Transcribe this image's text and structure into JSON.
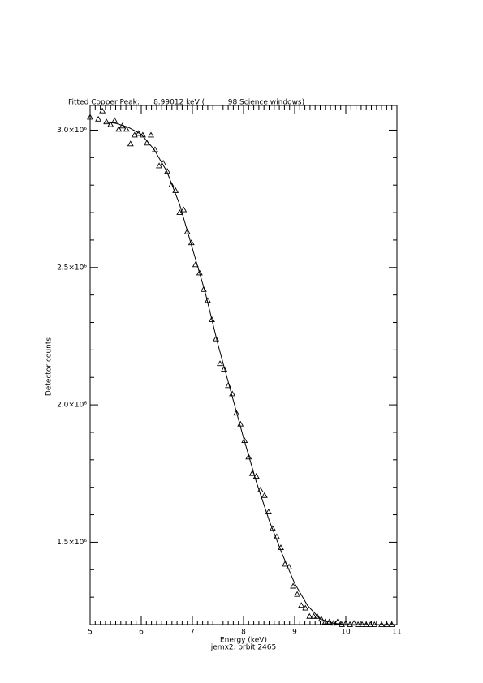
{
  "chart_data": {
    "type": "scatter",
    "title": "Fitted Copper Peak:      8.99012 keV (          98 Science windows)",
    "xlabel": "Energy (keV)",
    "subtitle": "jemx2: orbit 2465",
    "ylabel": "Detector counts",
    "xlim": [
      5,
      11
    ],
    "ylim": [
      1200000,
      3090000
    ],
    "xticks": [
      5,
      6,
      7,
      8,
      9,
      10,
      11
    ],
    "yticks": [
      {
        "value": 1500000,
        "label": "1.5×10⁶"
      },
      {
        "value": 2000000,
        "label": "2.0×10⁶"
      },
      {
        "value": 2500000,
        "label": "2.5×10⁶"
      },
      {
        "value": 3000000,
        "label": "3.0×10⁶"
      }
    ],
    "series": [
      {
        "type": "scatter",
        "color": "#000000",
        "x": [
          5.0,
          5.16,
          5.24,
          5.32,
          5.4,
          5.48,
          5.56,
          5.63,
          5.71,
          5.79,
          5.87,
          5.95,
          6.03,
          6.11,
          6.19,
          6.27,
          6.35,
          6.43,
          6.51,
          6.59,
          6.67,
          6.75,
          6.83,
          6.9,
          6.98,
          7.06,
          7.14,
          7.22,
          7.3,
          7.38,
          7.46,
          7.54,
          7.62,
          7.7,
          7.78,
          7.86,
          7.94,
          8.02,
          8.1,
          8.17,
          8.25,
          8.33,
          8.41,
          8.49,
          8.57,
          8.65,
          8.73,
          8.81,
          8.89,
          8.97,
          9.05,
          9.13,
          9.21,
          9.29,
          9.37,
          9.44,
          9.52,
          9.6,
          9.68,
          9.76,
          9.84,
          9.92,
          10.0,
          10.08,
          10.16,
          10.24,
          10.32,
          10.4,
          10.48,
          10.56,
          10.7,
          10.8,
          10.9
        ],
        "values": [
          3047000,
          3040000,
          3070000,
          3030000,
          3020000,
          3035000,
          3003000,
          3015000,
          3003000,
          2950000,
          2982000,
          2988000,
          2982000,
          2953000,
          2982000,
          2929000,
          2870000,
          2880000,
          2850000,
          2800000,
          2780000,
          2700000,
          2710000,
          2630000,
          2590000,
          2510000,
          2480000,
          2420000,
          2380000,
          2310000,
          2240000,
          2150000,
          2130000,
          2070000,
          2040000,
          1970000,
          1930000,
          1870000,
          1810000,
          1750000,
          1740000,
          1690000,
          1670000,
          1610000,
          1550000,
          1520000,
          1480000,
          1420000,
          1410000,
          1340000,
          1310000,
          1270000,
          1260000,
          1230000,
          1230000,
          1230000,
          1220000,
          1210000,
          1210000,
          1205000,
          1210000,
          1200000,
          1205000,
          1200000,
          1205000,
          1200000,
          1200000,
          1200000,
          1200000,
          1200000,
          1200000,
          1200000,
          1200000
        ]
      },
      {
        "type": "line",
        "color": "#000000",
        "x": [
          5.25,
          5.5,
          5.75,
          6.0,
          6.25,
          6.5,
          6.75,
          7.0,
          7.25,
          7.5,
          7.75,
          8.0,
          8.25,
          8.5,
          8.75,
          9.0,
          9.25,
          9.5,
          9.75,
          10.0,
          10.5,
          11.0
        ],
        "values": [
          3030000,
          3025000,
          3010000,
          2985000,
          2930000,
          2850000,
          2730000,
          2570000,
          2410000,
          2220000,
          2050000,
          1880000,
          1720000,
          1580000,
          1460000,
          1350000,
          1270000,
          1220000,
          1205000,
          1200000,
          1200000,
          1200000
        ]
      }
    ]
  }
}
